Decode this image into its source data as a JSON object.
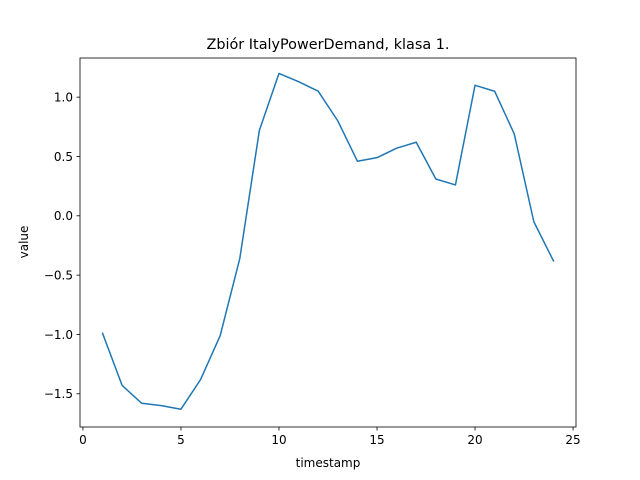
{
  "chart_data": {
    "type": "line",
    "title": "Zbiór ItalyPowerDemand, klasa 1.",
    "xlabel": "timestamp",
    "ylabel": "value",
    "xlim": [
      -0.15,
      25.15
    ],
    "ylim": [
      -1.78,
      1.33
    ],
    "xticks": [
      0,
      5,
      10,
      15,
      20,
      25
    ],
    "yticks": [
      -1.5,
      -1.0,
      -0.5,
      0.0,
      0.5,
      1.0
    ],
    "xtick_labels": [
      "0",
      "5",
      "10",
      "15",
      "20",
      "25"
    ],
    "ytick_labels": [
      "−1.5",
      "−1.0",
      "−0.5",
      "0.0",
      "0.5",
      "1.0"
    ],
    "grid": false,
    "series": [
      {
        "color": "#1f77b4",
        "x": [
          1,
          2,
          3,
          4,
          5,
          6,
          7,
          8,
          9,
          10,
          11,
          12,
          13,
          14,
          15,
          16,
          17,
          18,
          19,
          20,
          21,
          22,
          23,
          24
        ],
        "values": [
          -0.99,
          -1.43,
          -1.58,
          -1.6,
          -1.63,
          -1.38,
          -1.01,
          -0.36,
          0.72,
          1.2,
          1.13,
          1.05,
          0.8,
          0.46,
          0.49,
          0.57,
          0.62,
          0.31,
          0.26,
          1.1,
          1.05,
          0.69,
          -0.05,
          -0.38
        ]
      }
    ]
  }
}
